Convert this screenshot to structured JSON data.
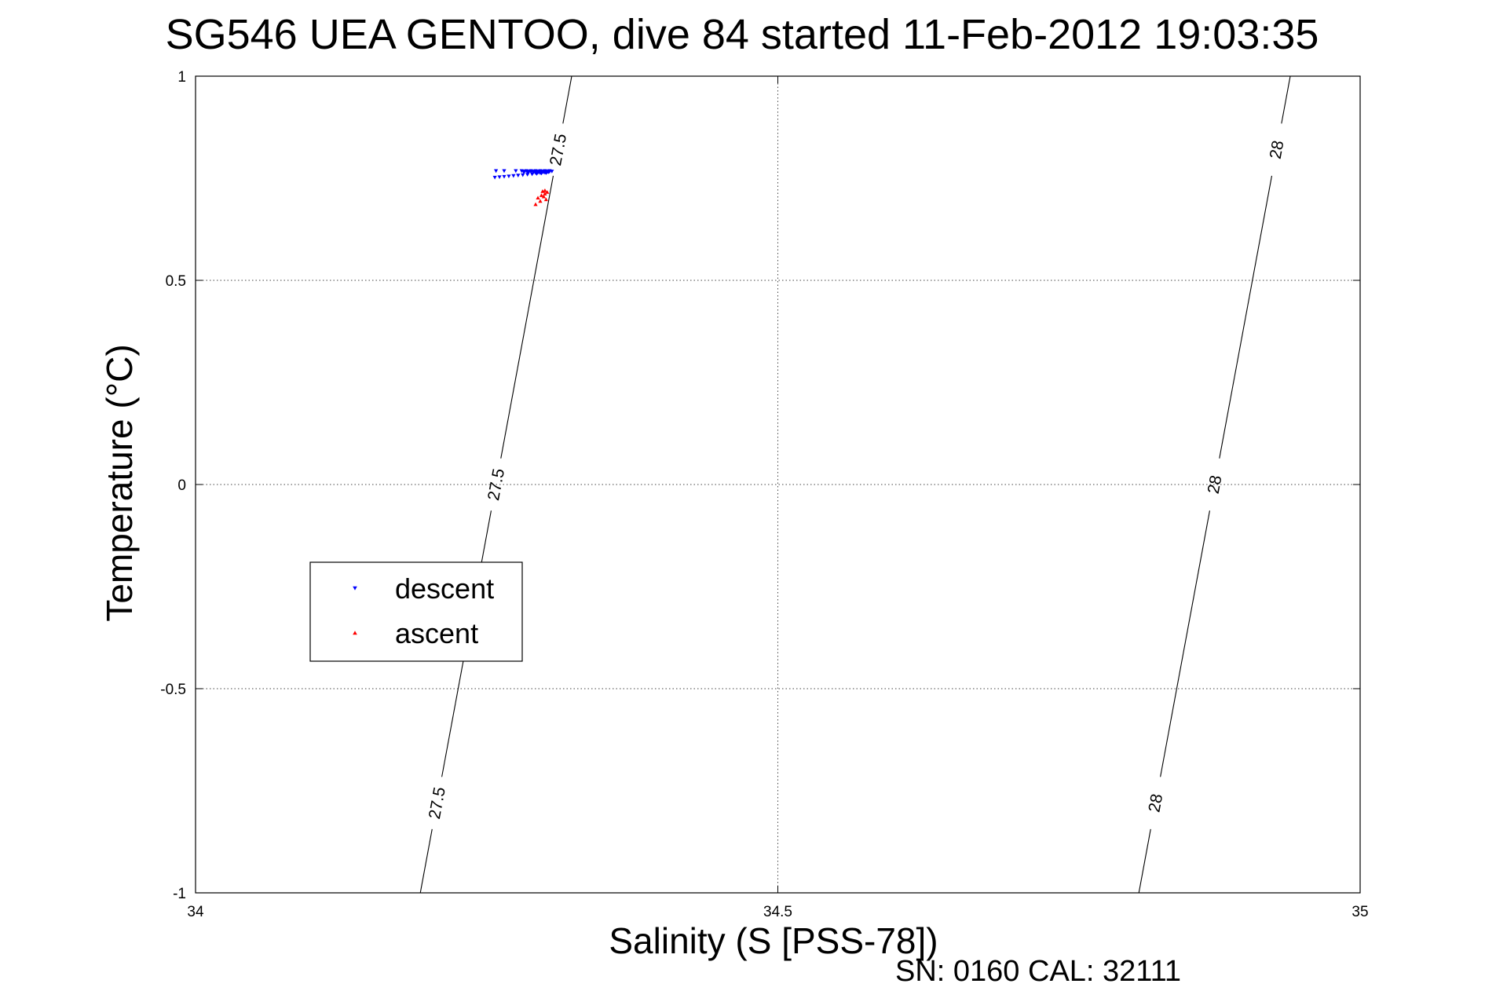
{
  "chart_data": {
    "type": "scatter",
    "title": "SG546 UEA GENTOO, dive 84 started 11-Feb-2012 19:03:35",
    "xlabel": "Salinity (S [PSS-78])",
    "ylabel": "Temperature (°C)",
    "xlim": [
      34,
      35
    ],
    "ylim": [
      -1,
      1
    ],
    "xticks": [
      34,
      34.5,
      35
    ],
    "xtick_labels": [
      "34",
      "34.5",
      "35"
    ],
    "yticks": [
      -1,
      -0.5,
      0,
      0.5,
      1
    ],
    "ytick_labels": [
      "-1",
      "-0.5",
      "0",
      "0.5",
      "1"
    ],
    "grid": true,
    "legend_position": "left-middle",
    "isopycnals": [
      {
        "label": "27.5",
        "points": [
          [
            34.193,
            -1.0
          ],
          [
            34.323,
            1.0
          ]
        ]
      },
      {
        "label": "28",
        "points": [
          [
            34.81,
            -1.0
          ],
          [
            34.94,
            1.0
          ]
        ]
      }
    ],
    "series": [
      {
        "name": "descent",
        "color": "#0000ff",
        "marker": "triangle-down",
        "points": [
          [
            34.304,
            0.768
          ],
          [
            34.3,
            0.768
          ],
          [
            34.296,
            0.768
          ],
          [
            34.292,
            0.768
          ],
          [
            34.288,
            0.768
          ],
          [
            34.284,
            0.768
          ],
          [
            34.28,
            0.768
          ],
          [
            34.275,
            0.768
          ],
          [
            34.265,
            0.768
          ],
          [
            34.258,
            0.768
          ],
          [
            34.3,
            0.768
          ],
          [
            34.306,
            0.767
          ],
          [
            34.302,
            0.766
          ],
          [
            34.298,
            0.765
          ],
          [
            34.294,
            0.764
          ],
          [
            34.29,
            0.764
          ],
          [
            34.286,
            0.764
          ],
          [
            34.282,
            0.764
          ],
          [
            34.301,
            0.763
          ],
          [
            34.297,
            0.762
          ],
          [
            34.293,
            0.761
          ],
          [
            34.289,
            0.76
          ],
          [
            34.285,
            0.759
          ],
          [
            34.281,
            0.758
          ],
          [
            34.277,
            0.757
          ],
          [
            34.273,
            0.756
          ],
          [
            34.269,
            0.755
          ],
          [
            34.265,
            0.754
          ],
          [
            34.261,
            0.753
          ],
          [
            34.257,
            0.752
          ],
          [
            34.303,
            0.765
          ],
          [
            34.3,
            0.764
          ],
          [
            34.296,
            0.763
          ],
          [
            34.302,
            0.765
          ],
          [
            34.299,
            0.765
          ],
          [
            34.295,
            0.765
          ],
          [
            34.301,
            0.764
          ],
          [
            34.297,
            0.764
          ],
          [
            34.293,
            0.764
          ],
          [
            34.3,
            0.766
          ],
          [
            34.297,
            0.766
          ],
          [
            34.294,
            0.766
          ],
          [
            34.291,
            0.766
          ],
          [
            34.288,
            0.766
          ],
          [
            34.285,
            0.766
          ],
          [
            34.302,
            0.767
          ],
          [
            34.298,
            0.767
          ],
          [
            34.294,
            0.767
          ],
          [
            34.29,
            0.767
          ],
          [
            34.286,
            0.767
          ],
          [
            34.282,
            0.767
          ],
          [
            34.304,
            0.766
          ],
          [
            34.3,
            0.765
          ],
          [
            34.296,
            0.764
          ],
          [
            34.292,
            0.763
          ],
          [
            34.304,
            0.768
          ],
          [
            34.3,
            0.767
          ],
          [
            34.296,
            0.766
          ],
          [
            34.302,
            0.766
          ],
          [
            34.298,
            0.765
          ],
          [
            34.304,
            0.767
          ],
          [
            34.3,
            0.766
          ],
          [
            34.296,
            0.765
          ],
          [
            34.292,
            0.764
          ]
        ]
      },
      {
        "name": "ascent",
        "color": "#ff0000",
        "marker": "triangle-up",
        "points": [
          [
            34.298,
            0.718
          ],
          [
            34.3,
            0.712
          ],
          [
            34.299,
            0.705
          ],
          [
            34.301,
            0.698
          ],
          [
            34.297,
            0.708
          ],
          [
            34.302,
            0.716
          ],
          [
            34.3,
            0.72
          ],
          [
            34.294,
            0.702
          ],
          [
            34.296,
            0.694
          ],
          [
            34.292,
            0.686
          ]
        ]
      }
    ]
  },
  "footer": {
    "serial_text": "SN: 0160  CAL: 32111"
  }
}
